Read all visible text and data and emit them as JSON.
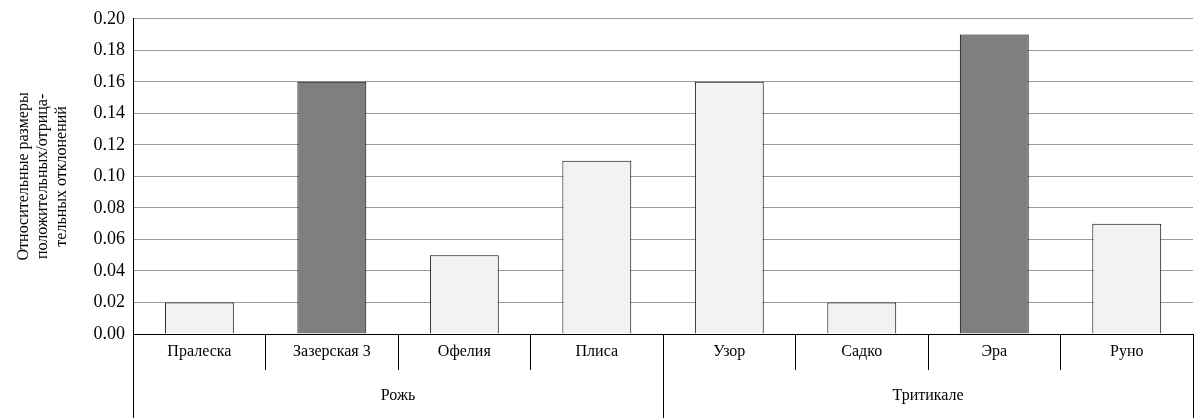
{
  "chart_data": {
    "type": "bar",
    "ylabel": "Относительные размеры\nположительных/отрица-\nтельных отклонений",
    "categories": [
      "Пралеска",
      "Зазерская 3",
      "Офелия",
      "Плиса",
      "Узор",
      "Садко",
      "Эра",
      "Руно"
    ],
    "values": [
      0.02,
      0.16,
      0.05,
      0.11,
      0.16,
      0.02,
      0.19,
      0.07
    ],
    "colors": [
      "#f2f2f2",
      "#7f7f7f",
      "#f2f2f2",
      "#f2f2f2",
      "#f2f2f2",
      "#f2f2f2",
      "#7f7f7f",
      "#f2f2f2"
    ],
    "ylim": [
      0,
      0.2
    ],
    "yticks": [
      {
        "value": 0,
        "label": "0.00"
      },
      {
        "value": 0.02,
        "label": "0.02"
      },
      {
        "value": 0.04,
        "label": "0.04"
      },
      {
        "value": 0.06,
        "label": "0.06"
      },
      {
        "value": 0.08,
        "label": "0.08"
      },
      {
        "value": 0.1,
        "label": "0.10"
      },
      {
        "value": 0.12,
        "label": "0.12"
      },
      {
        "value": 0.14,
        "label": "0.14"
      },
      {
        "value": 0.16,
        "label": "0.16"
      },
      {
        "value": 0.18,
        "label": "0.18"
      },
      {
        "value": 0.2,
        "label": "0.20"
      }
    ],
    "annotations": [
      "Рожь",
      "Тритикале"
    ],
    "grid": "y",
    "legend": false
  }
}
